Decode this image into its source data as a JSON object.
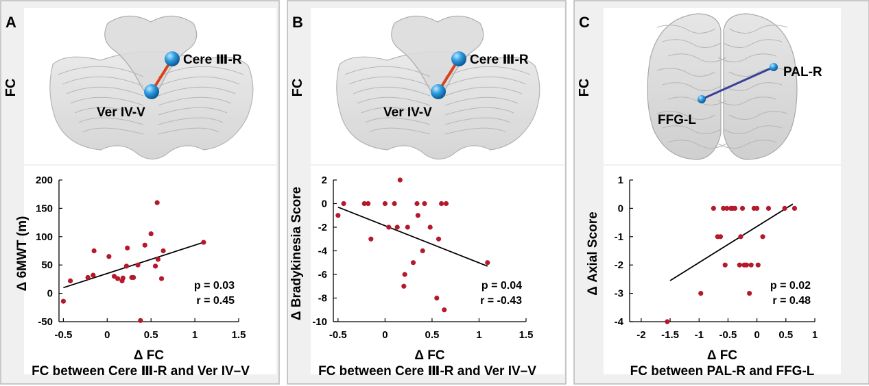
{
  "colors": {
    "panel_bg": "#f0f0f0",
    "panel_border": "#b8b8b8",
    "point": "#b5192b",
    "fit_line": "#000000",
    "node": "#1e88d4",
    "edge_cerebellum": "#d8421c",
    "edge_cerebrum": "#3a3f9a"
  },
  "chart_data": [
    {
      "panel_label": "A",
      "type": "scatter",
      "brain_image": "cerebellum",
      "brain_ylabel": "FC",
      "node_labels": [
        "Cere Ⅲ-R",
        "Ver IV-V"
      ],
      "ylabel": "Δ 6MWT (m)",
      "xlabel": "Δ FC",
      "subtitle": "FC between Cere Ⅲ-R and Ver IV–V",
      "xlim": [
        -0.55,
        1.5
      ],
      "ylim": [
        -50,
        200
      ],
      "xticks": [
        -0.5,
        0,
        0.5,
        1,
        1.5
      ],
      "xtick_labels": [
        "-0.5",
        "0",
        "0.5",
        "1",
        "1.5"
      ],
      "yticks": [
        -50,
        0,
        50,
        100,
        150,
        200
      ],
      "ytick_labels": [
        "-50",
        "0",
        "50",
        "100",
        "150",
        "200"
      ],
      "points": [
        [
          -0.5,
          -14
        ],
        [
          -0.42,
          22
        ],
        [
          -0.22,
          28
        ],
        [
          -0.16,
          32
        ],
        [
          -0.15,
          75
        ],
        [
          0.02,
          65
        ],
        [
          0.08,
          30
        ],
        [
          0.12,
          26
        ],
        [
          0.17,
          22
        ],
        [
          0.18,
          27
        ],
        [
          0.22,
          48
        ],
        [
          0.23,
          80
        ],
        [
          0.28,
          28
        ],
        [
          0.3,
          28
        ],
        [
          0.35,
          50
        ],
        [
          0.38,
          -48
        ],
        [
          0.43,
          85
        ],
        [
          0.5,
          105
        ],
        [
          0.55,
          48
        ],
        [
          0.57,
          160
        ],
        [
          0.58,
          60
        ],
        [
          0.62,
          26
        ],
        [
          0.64,
          75
        ],
        [
          1.1,
          90
        ]
      ],
      "fit_line": [
        [
          -0.5,
          10
        ],
        [
          1.1,
          90
        ]
      ],
      "annotation": [
        "p = 0.03",
        "r = 0.45"
      ]
    },
    {
      "panel_label": "B",
      "type": "scatter",
      "brain_image": "cerebellum",
      "brain_ylabel": "FC",
      "node_labels": [
        "Cere Ⅲ-R",
        "Ver IV-V"
      ],
      "ylabel": "Δ Bradykinesia Score",
      "xlabel": "Δ FC",
      "subtitle": "FC between Cere Ⅲ-R and Ver IV–V",
      "xlim": [
        -0.55,
        1.5
      ],
      "ylim": [
        -10,
        2
      ],
      "xticks": [
        -0.5,
        0,
        0.5,
        1,
        1.5
      ],
      "xtick_labels": [
        "-0.5",
        "0",
        "0.5",
        "1",
        "1.5"
      ],
      "yticks": [
        -10,
        -8,
        -6,
        -4,
        -2,
        0,
        2
      ],
      "ytick_labels": [
        "-10",
        "-8",
        "-6",
        "-4",
        "-2",
        "0",
        "2"
      ],
      "points": [
        [
          -0.5,
          -1
        ],
        [
          -0.44,
          0
        ],
        [
          -0.22,
          0
        ],
        [
          -0.18,
          0
        ],
        [
          -0.15,
          -3
        ],
        [
          0.0,
          0
        ],
        [
          0.04,
          -2
        ],
        [
          0.1,
          0
        ],
        [
          0.13,
          -2
        ],
        [
          0.16,
          2
        ],
        [
          0.2,
          -7
        ],
        [
          0.21,
          -6
        ],
        [
          0.24,
          -2
        ],
        [
          0.3,
          -5
        ],
        [
          0.34,
          0
        ],
        [
          0.35,
          -1
        ],
        [
          0.4,
          -4
        ],
        [
          0.42,
          0
        ],
        [
          0.48,
          -2
        ],
        [
          0.55,
          -8
        ],
        [
          0.57,
          -3
        ],
        [
          0.6,
          0
        ],
        [
          0.63,
          -9
        ],
        [
          0.65,
          0
        ],
        [
          1.09,
          -5
        ]
      ],
      "fit_line": [
        [
          -0.5,
          -0.3
        ],
        [
          1.09,
          -5.3
        ]
      ],
      "annotation": [
        "p = 0.04",
        "r = -0.43"
      ]
    },
    {
      "panel_label": "C",
      "type": "scatter",
      "brain_image": "cerebrum",
      "brain_ylabel": "FC",
      "node_labels": [
        "PAL-R",
        "FFG-L"
      ],
      "ylabel": "Δ Axial Score",
      "xlabel": "Δ FC",
      "subtitle": "FC between  PAL-R and FFG-L",
      "xlim": [
        -2.2,
        1.0
      ],
      "ylim": [
        -4,
        1
      ],
      "xticks": [
        -2,
        -1.5,
        -1,
        -0.5,
        0,
        0.5,
        1
      ],
      "xtick_labels": [
        "-2",
        "-1.5",
        "-1",
        "-0.5",
        "0",
        "0.5",
        "1"
      ],
      "yticks": [
        -4,
        -3,
        -2,
        -1,
        0,
        1
      ],
      "ytick_labels": [
        "-4",
        "-3",
        "-2",
        "-1",
        "0",
        "1"
      ],
      "points": [
        [
          -1.55,
          -4
        ],
        [
          -0.97,
          -3
        ],
        [
          -0.75,
          0
        ],
        [
          -0.68,
          -1
        ],
        [
          -0.63,
          -1
        ],
        [
          -0.58,
          0
        ],
        [
          -0.55,
          -2
        ],
        [
          -0.52,
          0
        ],
        [
          -0.45,
          0
        ],
        [
          -0.42,
          0
        ],
        [
          -0.38,
          0
        ],
        [
          -0.3,
          -2
        ],
        [
          -0.28,
          -1
        ],
        [
          -0.25,
          0
        ],
        [
          -0.22,
          -2
        ],
        [
          -0.18,
          -2
        ],
        [
          -0.13,
          -3
        ],
        [
          -0.1,
          -2
        ],
        [
          -0.05,
          0
        ],
        [
          0.0,
          0
        ],
        [
          0.02,
          -2
        ],
        [
          0.1,
          -1
        ],
        [
          0.2,
          0
        ],
        [
          0.48,
          0
        ],
        [
          0.65,
          0
        ]
      ],
      "fit_line": [
        [
          -1.5,
          -2.55
        ],
        [
          0.62,
          0.15
        ]
      ],
      "annotation": [
        "p = 0.02",
        "r = 0.48"
      ]
    }
  ]
}
